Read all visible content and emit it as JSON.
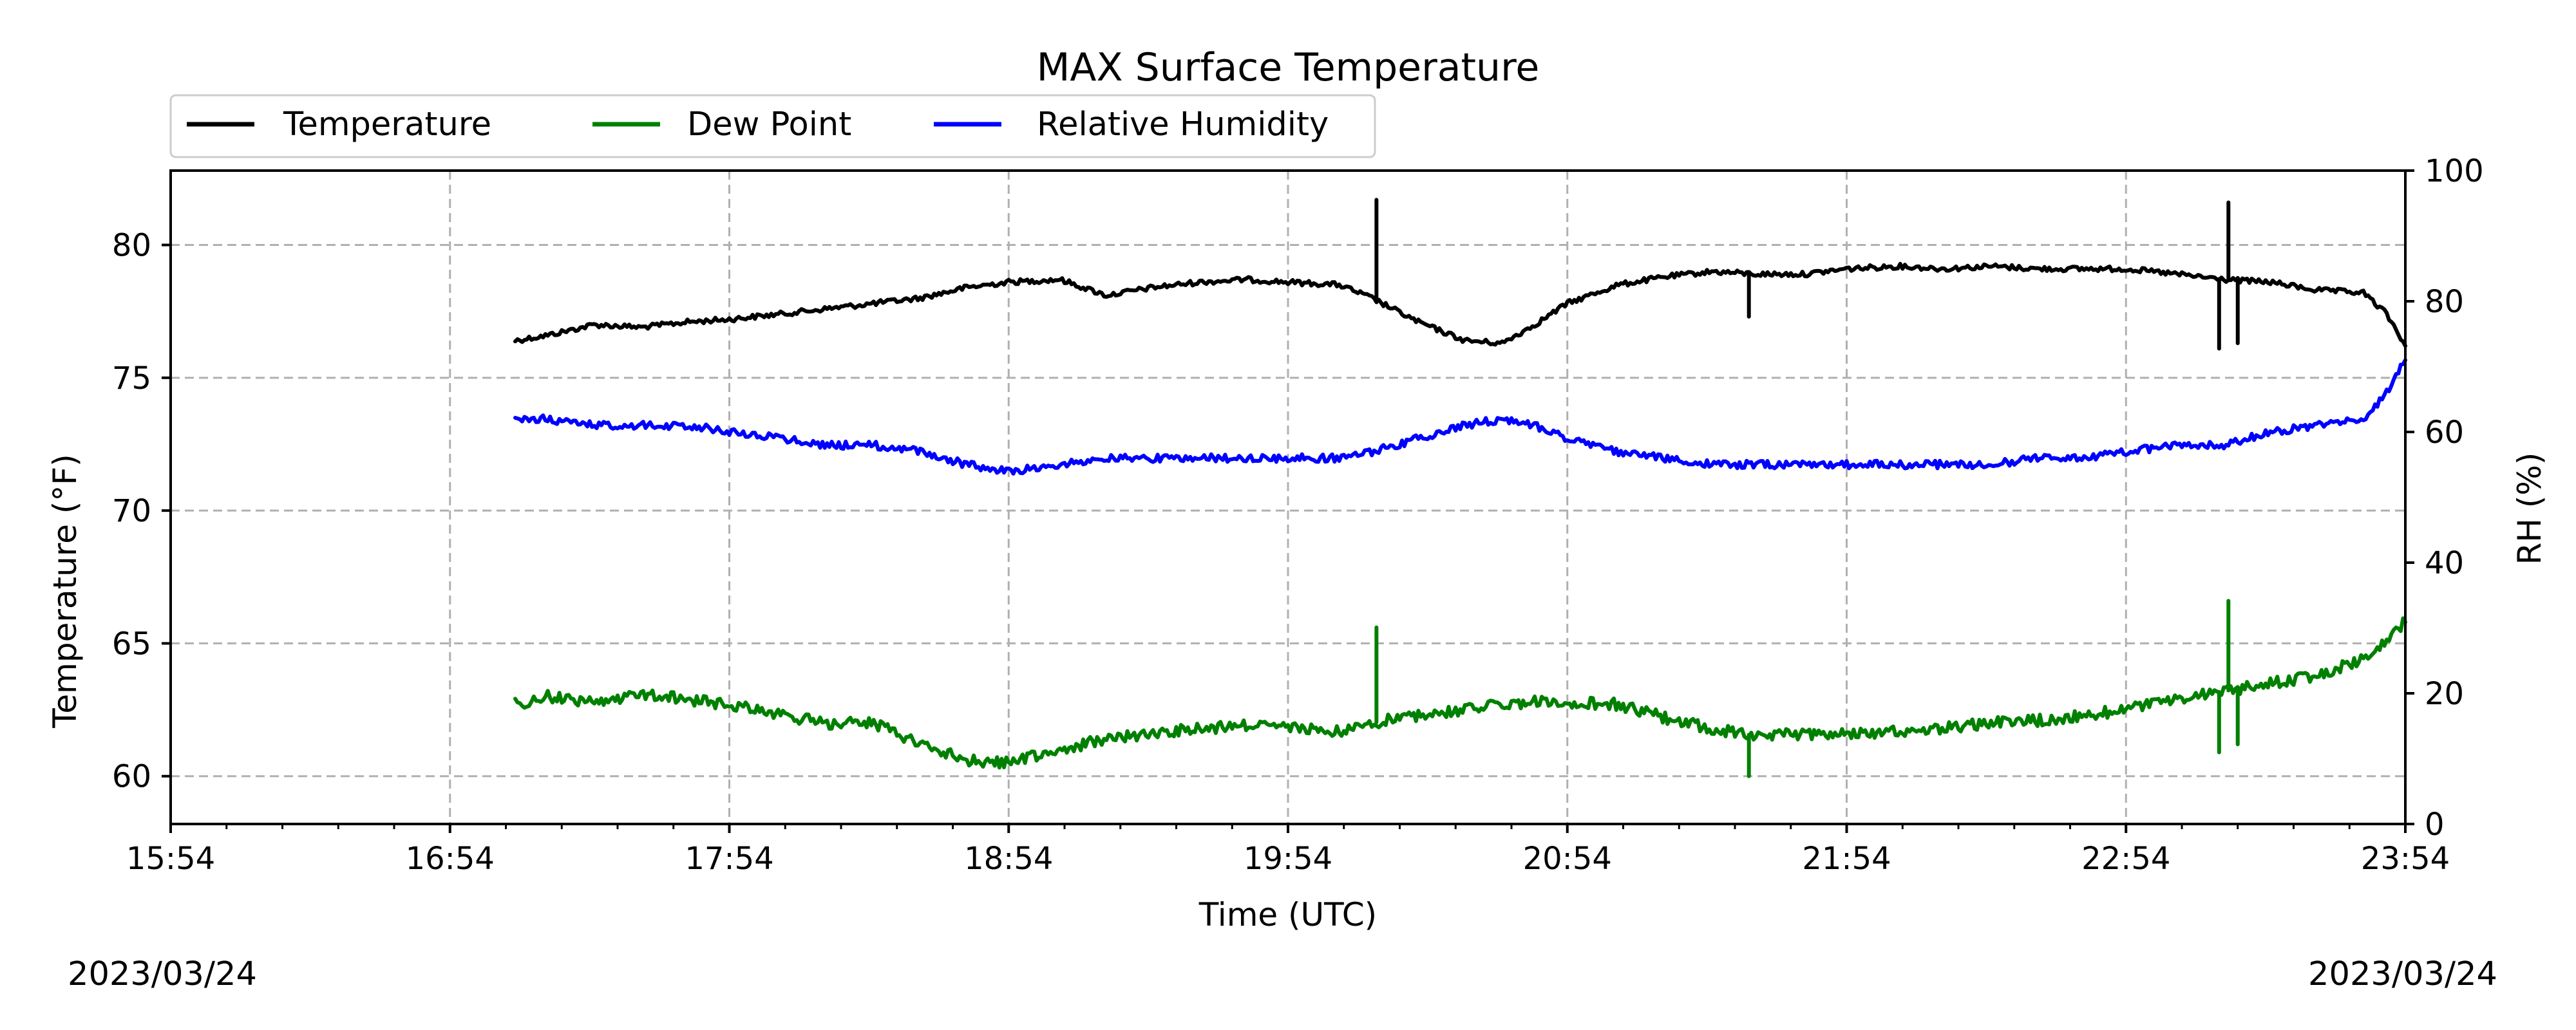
{
  "chart_data": {
    "type": "line",
    "title": "MAX Surface Temperature",
    "xlabel": "Time (UTC)",
    "ylabel_left": "Temperature (°F)",
    "ylabel_right": "RH (%)",
    "x_ticks": [
      "15:54",
      "16:54",
      "17:54",
      "18:54",
      "19:54",
      "20:54",
      "21:54",
      "22:54",
      "23:54"
    ],
    "y_left_ticks": [
      60,
      65,
      70,
      75,
      80
    ],
    "y_right_ticks": [
      0,
      20,
      40,
      60,
      80,
      100
    ],
    "xlim": [
      "15:54",
      "23:54"
    ],
    "ylim_left": [
      58.2,
      82.8
    ],
    "ylim_right": [
      0,
      100
    ],
    "grid": true,
    "legend_placement": "top-left, above plot",
    "date_left": "2023/03/24",
    "date_right": "2023/03/24",
    "series": [
      {
        "name": "Temperature",
        "axis": "left",
        "color": "#000000",
        "x": [
          "17:08",
          "17:15",
          "17:25",
          "17:35",
          "17:45",
          "17:54",
          "18:05",
          "18:15",
          "18:25",
          "18:35",
          "18:45",
          "18:54",
          "19:05",
          "19:15",
          "19:25",
          "19:35",
          "19:45",
          "19:54",
          "20:05",
          "20:12",
          "20:22",
          "20:32",
          "20:40",
          "20:47",
          "20:54",
          "21:05",
          "21:15",
          "21:25",
          "21:35",
          "21:45",
          "21:54",
          "22:05",
          "22:15",
          "22:25",
          "22:35",
          "22:45",
          "22:54",
          "23:05",
          "23:15",
          "23:25",
          "23:35",
          "23:45",
          "23:50",
          "23:54"
        ],
        "y": [
          76.4,
          76.6,
          77.0,
          76.9,
          77.1,
          77.2,
          77.4,
          77.6,
          77.8,
          78.0,
          78.4,
          78.6,
          78.7,
          78.1,
          78.4,
          78.6,
          78.7,
          78.6,
          78.5,
          78.0,
          77.1,
          76.4,
          76.3,
          77.0,
          77.8,
          78.5,
          78.8,
          79.0,
          78.9,
          78.9,
          79.1,
          79.2,
          79.1,
          79.2,
          79.1,
          79.1,
          79.1,
          78.9,
          78.7,
          78.6,
          78.3,
          78.2,
          77.4,
          76.2
        ],
        "spikes": [
          {
            "x": "20:13",
            "y": 81.7
          },
          {
            "x": "21:33",
            "y": 77.3
          },
          {
            "x": "23:16",
            "y": 81.6
          },
          {
            "x": "23:14",
            "y": 76.1
          },
          {
            "x": "23:18",
            "y": 76.3
          }
        ]
      },
      {
        "name": "Dew Point",
        "axis": "left",
        "color": "#008000",
        "x": [
          "17:08",
          "17:15",
          "17:25",
          "17:35",
          "17:45",
          "17:54",
          "18:05",
          "18:15",
          "18:25",
          "18:35",
          "18:45",
          "18:54",
          "19:05",
          "19:15",
          "19:25",
          "19:35",
          "19:45",
          "19:54",
          "20:05",
          "20:12",
          "20:22",
          "20:32",
          "20:40",
          "20:47",
          "20:54",
          "21:05",
          "21:15",
          "21:25",
          "21:35",
          "21:45",
          "21:54",
          "22:05",
          "22:15",
          "22:25",
          "22:35",
          "22:45",
          "22:54",
          "23:05",
          "23:15",
          "23:25",
          "23:35",
          "23:45",
          "23:50",
          "23:54"
        ],
        "y": [
          62.7,
          63.0,
          62.8,
          63.1,
          62.9,
          62.7,
          62.3,
          62.0,
          62.0,
          61.2,
          60.6,
          60.5,
          61.0,
          61.4,
          61.6,
          61.8,
          61.9,
          61.8,
          61.7,
          62.0,
          62.3,
          62.5,
          62.7,
          62.8,
          62.8,
          62.7,
          62.2,
          61.8,
          61.5,
          61.6,
          61.6,
          61.7,
          61.8,
          62.0,
          62.1,
          62.3,
          62.5,
          62.9,
          63.2,
          63.5,
          63.8,
          64.4,
          65.2,
          65.8
        ],
        "spikes": [
          {
            "x": "20:13",
            "y": 65.6
          },
          {
            "x": "21:33",
            "y": 60.0
          },
          {
            "x": "23:16",
            "y": 66.6
          },
          {
            "x": "23:14",
            "y": 60.9
          },
          {
            "x": "23:18",
            "y": 61.2
          }
        ]
      },
      {
        "name": "Relative Humidity",
        "axis": "right",
        "color": "#0000ff",
        "x": [
          "17:08",
          "17:15",
          "17:25",
          "17:35",
          "17:45",
          "17:54",
          "18:05",
          "18:15",
          "18:25",
          "18:35",
          "18:45",
          "18:54",
          "19:05",
          "19:15",
          "19:25",
          "19:35",
          "19:45",
          "19:54",
          "20:05",
          "20:12",
          "20:22",
          "20:32",
          "20:40",
          "20:47",
          "20:54",
          "21:05",
          "21:15",
          "21:25",
          "21:35",
          "21:45",
          "21:54",
          "22:05",
          "22:15",
          "22:25",
          "22:35",
          "22:45",
          "22:54",
          "23:05",
          "23:15",
          "23:25",
          "23:35",
          "23:45",
          "23:50",
          "23:54"
        ],
        "y": [
          62,
          62,
          61,
          61,
          61,
          60,
          59,
          58,
          58,
          57,
          55,
          54,
          55,
          56,
          56,
          56,
          56,
          56,
          56,
          57,
          59,
          61,
          62,
          61,
          59,
          57,
          56,
          55,
          55,
          55,
          55,
          55,
          55,
          55,
          56,
          56,
          57,
          58,
          58,
          60,
          61,
          62,
          66,
          71
        ]
      }
    ]
  }
}
